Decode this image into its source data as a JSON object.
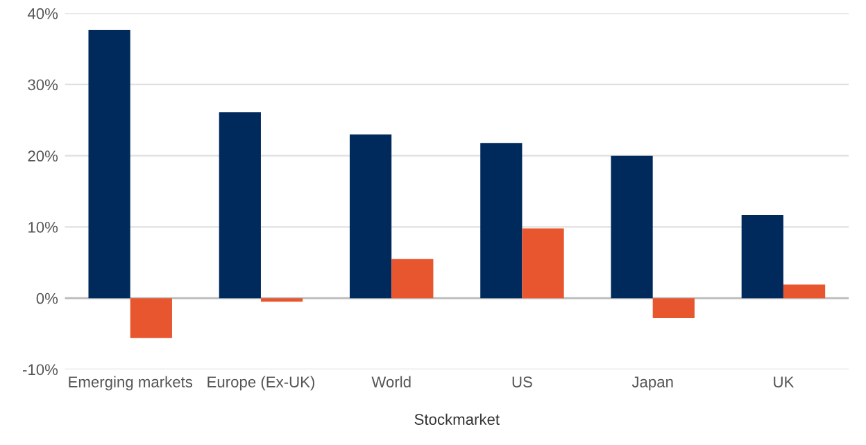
{
  "chart_data": {
    "type": "bar",
    "xlabel": "Stockmarket",
    "categories": [
      "Emerging markets",
      "Europe (Ex-UK)",
      "World",
      "US",
      "Japan",
      "UK"
    ],
    "series": [
      {
        "color": "#002a5c",
        "values": [
          37.7,
          26.1,
          23.0,
          21.8,
          20.0,
          11.7
        ]
      },
      {
        "color": "#e8562f",
        "values": [
          -5.6,
          -0.5,
          5.5,
          9.8,
          -2.8,
          1.9
        ]
      }
    ],
    "ylim": [
      -10,
      40
    ],
    "yticks": [
      {
        "value": -10,
        "label": "-10%"
      },
      {
        "value": 0,
        "label": "0%"
      },
      {
        "value": 10,
        "label": "10%"
      },
      {
        "value": 20,
        "label": "20%"
      },
      {
        "value": 30,
        "label": "30%"
      },
      {
        "value": 40,
        "label": "40%"
      }
    ],
    "grid": "y"
  }
}
